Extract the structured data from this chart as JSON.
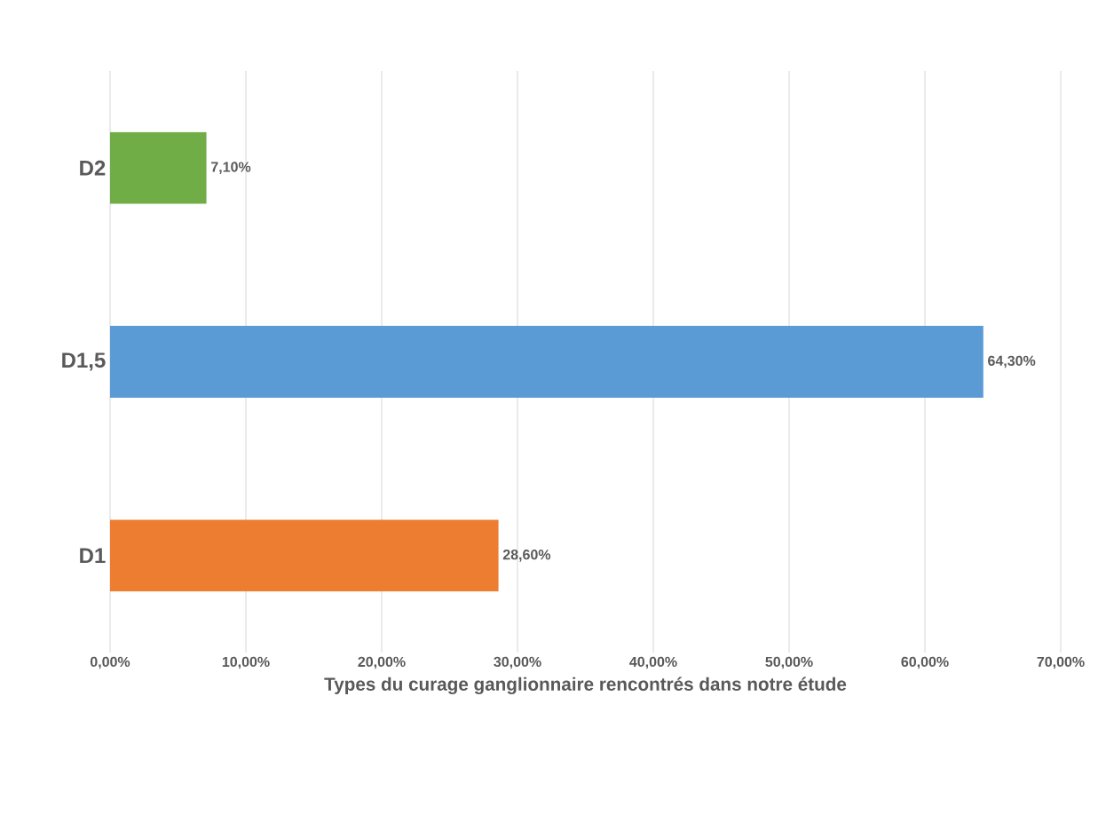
{
  "chart_data": {
    "type": "bar",
    "orientation": "horizontal",
    "xlabel": "Types du curage ganglionnaire rencontrés dans notre étude",
    "categories": [
      "D2",
      "D1,5",
      "D1"
    ],
    "values": [
      7.1,
      64.3,
      28.6
    ],
    "colors": [
      "#70ad47",
      "#5b9bd5",
      "#ed7d31"
    ],
    "value_labels": [
      "7,10%",
      "64,30%",
      "28,60%"
    ],
    "xlim": [
      0,
      70
    ],
    "xticks": [
      {
        "value": 0,
        "label": "0,00%"
      },
      {
        "value": 10,
        "label": "10,00%"
      },
      {
        "value": 20,
        "label": "20,00%"
      },
      {
        "value": 30,
        "label": "30,00%"
      },
      {
        "value": 40,
        "label": "40,00%"
      },
      {
        "value": 50,
        "label": "50,00%"
      },
      {
        "value": 60,
        "label": "60,00%"
      },
      {
        "value": 70,
        "label": "70,00%"
      }
    ],
    "grid": "x"
  }
}
